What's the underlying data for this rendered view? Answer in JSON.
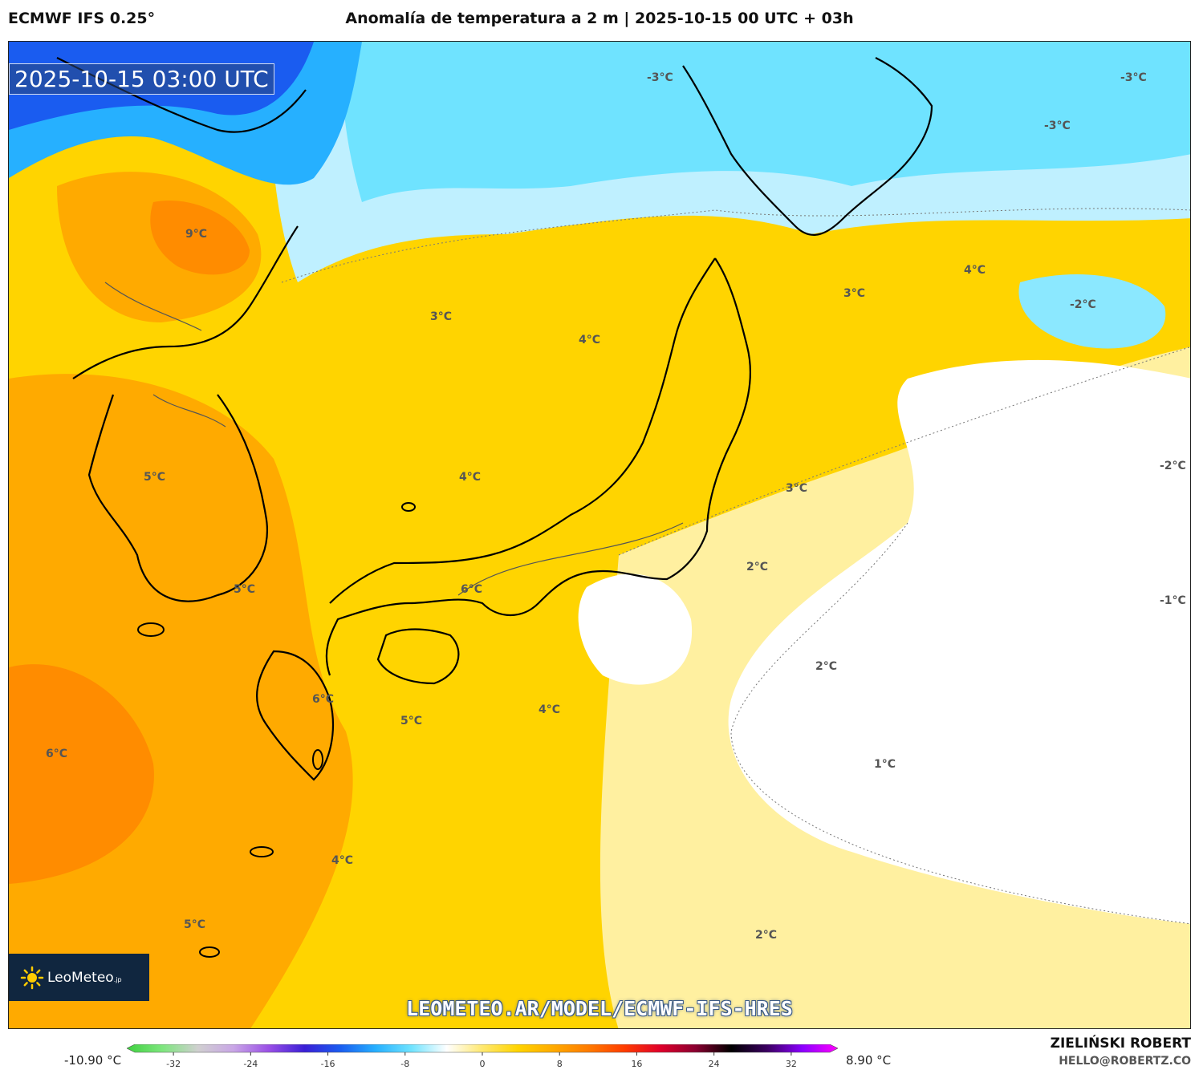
{
  "header": {
    "model": "ECMWF IFS 0.25°",
    "title": "Anomalía de temperatura a 2 m | 2025-10-15 00 UTC + 03h"
  },
  "map": {
    "valid_time": "2025-10-15 03:00 UTC",
    "contour_labels": [
      "-3°C",
      "-3°C",
      "-3°C",
      "9°C",
      "3°C",
      "4°C",
      "3°C",
      "4°C",
      "-2°C",
      "-2°C",
      "5°C",
      "4°C",
      "3°C",
      "5°C",
      "6°C",
      "2°C",
      "-1°C",
      "2°C",
      "4°C",
      "6°C",
      "5°C",
      "6°C",
      "1°C",
      "4°C",
      "5°C",
      "2°C"
    ],
    "colors": {
      "cold": "#1a5cf0",
      "cool": "#6fe3ff",
      "neutral": "#ffffff",
      "warm": "#ffd400",
      "hot": "#ff8c00"
    }
  },
  "logo": {
    "name": "LeoMeteo",
    "suffix": ".jp"
  },
  "watermark_url": "LEOMETEO.AR/MODEL/ECMWF-IFS-HRES",
  "colorbar": {
    "min_label": "-10.90 °C",
    "max_label": "8.90 °C",
    "ticks": [
      "-32",
      "-24",
      "-16",
      "-8",
      "0",
      "8",
      "16",
      "24",
      "32"
    ],
    "tick_values": [
      -32,
      -24,
      -16,
      -8,
      0,
      8,
      16,
      24,
      32
    ],
    "range": [
      -36,
      36
    ],
    "stops": [
      "#3fd13f",
      "#7ee67e",
      "#d0d0d0",
      "#c9a6e6",
      "#9a4fe6",
      "#3a1fd6",
      "#1a5cf0",
      "#26b0ff",
      "#6fe3ff",
      "#ffffff",
      "#ffe870",
      "#ffd400",
      "#ffaa00",
      "#ff7a00",
      "#ff3c00",
      "#e0002a",
      "#8a0030",
      "#000000",
      "#3a0060",
      "#8a00ff",
      "#ff00ff"
    ]
  },
  "credits": {
    "author": "ZIELIŃSKI ROBERT",
    "email": "HELLO@ROBERTZ.CO"
  }
}
